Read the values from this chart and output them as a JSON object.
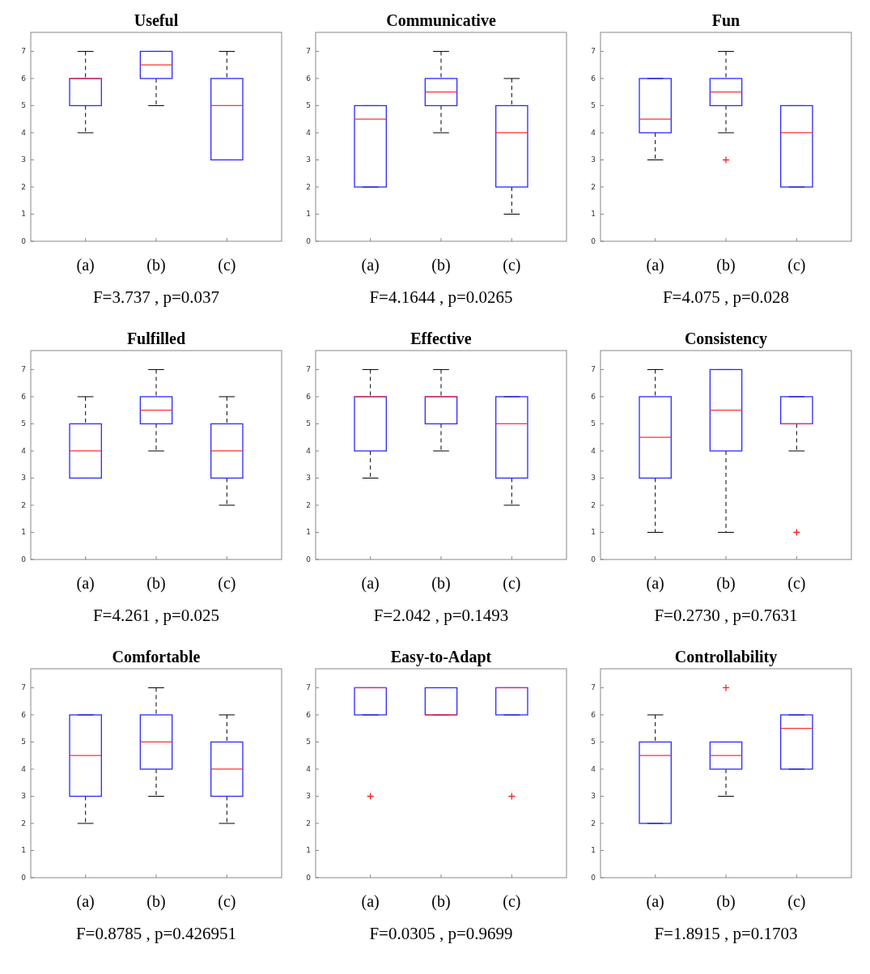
{
  "chart_data": [
    {
      "type": "box",
      "title": "Useful",
      "categories": [
        "(a)",
        "(b)",
        "(c)"
      ],
      "ylim": [
        0,
        7.7
      ],
      "yticks": [
        0,
        1,
        2,
        3,
        4,
        5,
        6,
        7
      ],
      "grid": false,
      "annotations": [
        "F=3.737 , p=0.037"
      ],
      "boxes": [
        {
          "low": 4,
          "q1": 5,
          "median": 6,
          "q3": 6,
          "high": 7
        },
        {
          "low": 5,
          "q1": 6,
          "median": 6.5,
          "q3": 7,
          "high": 7
        },
        {
          "low": 3,
          "q1": 3,
          "median": 5,
          "q3": 6,
          "high": 7
        }
      ]
    },
    {
      "type": "box",
      "title": "Communicative",
      "categories": [
        "(a)",
        "(b)",
        "(c)"
      ],
      "ylim": [
        0,
        7.7
      ],
      "yticks": [
        0,
        1,
        2,
        3,
        4,
        5,
        6,
        7
      ],
      "grid": false,
      "annotations": [
        "F=4.1644 , p=0.0265"
      ],
      "boxes": [
        {
          "low": 2,
          "q1": 2,
          "median": 4.5,
          "q3": 5,
          "high": 5
        },
        {
          "low": 4,
          "q1": 5,
          "median": 5.5,
          "q3": 6,
          "high": 7
        },
        {
          "low": 1,
          "q1": 2,
          "median": 4,
          "q3": 5,
          "high": 6
        }
      ]
    },
    {
      "type": "box",
      "title": "Fun",
      "categories": [
        "(a)",
        "(b)",
        "(c)"
      ],
      "ylim": [
        0,
        7.7
      ],
      "yticks": [
        0,
        1,
        2,
        3,
        4,
        5,
        6,
        7
      ],
      "grid": false,
      "annotations": [
        "F=4.075 , p=0.028"
      ],
      "boxes": [
        {
          "low": 3,
          "q1": 4,
          "median": 4.5,
          "q3": 6,
          "high": 6
        },
        {
          "low": 4,
          "q1": 5,
          "median": 5.5,
          "q3": 6,
          "high": 7,
          "outliers": [
            3
          ]
        },
        {
          "low": 2,
          "q1": 2,
          "median": 4,
          "q3": 5,
          "high": 5
        }
      ]
    },
    {
      "type": "box",
      "title": "Fulfilled",
      "categories": [
        "(a)",
        "(b)",
        "(c)"
      ],
      "ylim": [
        0,
        7.7
      ],
      "yticks": [
        0,
        1,
        2,
        3,
        4,
        5,
        6,
        7
      ],
      "grid": false,
      "annotations": [
        "F=4.261 , p=0.025"
      ],
      "boxes": [
        {
          "low": 3,
          "q1": 3,
          "median": 4,
          "q3": 5,
          "high": 6
        },
        {
          "low": 4,
          "q1": 5,
          "median": 5.5,
          "q3": 6,
          "high": 7
        },
        {
          "low": 2,
          "q1": 3,
          "median": 4,
          "q3": 5,
          "high": 6
        }
      ]
    },
    {
      "type": "box",
      "title": "Effective",
      "categories": [
        "(a)",
        "(b)",
        "(c)"
      ],
      "ylim": [
        0,
        7.7
      ],
      "yticks": [
        0,
        1,
        2,
        3,
        4,
        5,
        6,
        7
      ],
      "grid": false,
      "annotations": [
        "F=2.042 , p=0.1493"
      ],
      "boxes": [
        {
          "low": 3,
          "q1": 4,
          "median": 6,
          "q3": 6,
          "high": 7
        },
        {
          "low": 4,
          "q1": 5,
          "median": 6,
          "q3": 6,
          "high": 7
        },
        {
          "low": 2,
          "q1": 3,
          "median": 5,
          "q3": 6,
          "high": 6
        }
      ]
    },
    {
      "type": "box",
      "title": "Consistency",
      "categories": [
        "(a)",
        "(b)",
        "(c)"
      ],
      "ylim": [
        0,
        7.7
      ],
      "yticks": [
        0,
        1,
        2,
        3,
        4,
        5,
        6,
        7
      ],
      "grid": false,
      "annotations": [
        "F=0.2730 , p=0.7631"
      ],
      "boxes": [
        {
          "low": 1,
          "q1": 3,
          "median": 4.5,
          "q3": 6,
          "high": 7
        },
        {
          "low": 1,
          "q1": 4,
          "median": 5.5,
          "q3": 7,
          "high": 7
        },
        {
          "low": 4,
          "q1": 5,
          "median": 5,
          "q3": 6,
          "high": 6,
          "outliers": [
            1
          ]
        }
      ]
    },
    {
      "type": "box",
      "title": "Comfortable",
      "categories": [
        "(a)",
        "(b)",
        "(c)"
      ],
      "ylim": [
        0,
        7.7
      ],
      "yticks": [
        0,
        1,
        2,
        3,
        4,
        5,
        6,
        7
      ],
      "grid": false,
      "annotations": [
        "F=0.8785 , p=0.426951"
      ],
      "boxes": [
        {
          "low": 2,
          "q1": 3,
          "median": 4.5,
          "q3": 6,
          "high": 6
        },
        {
          "low": 3,
          "q1": 4,
          "median": 5,
          "q3": 6,
          "high": 7
        },
        {
          "low": 2,
          "q1": 3,
          "median": 4,
          "q3": 5,
          "high": 6
        }
      ]
    },
    {
      "type": "box",
      "title": "Easy-to-Adapt",
      "categories": [
        "(a)",
        "(b)",
        "(c)"
      ],
      "ylim": [
        0,
        7.7
      ],
      "yticks": [
        0,
        1,
        2,
        3,
        4,
        5,
        6,
        7
      ],
      "grid": false,
      "annotations": [
        "F=0.0305 , p=0.9699"
      ],
      "boxes": [
        {
          "low": 6,
          "q1": 6,
          "median": 7,
          "q3": 7,
          "high": 7,
          "outliers": [
            3
          ]
        },
        {
          "low": 6,
          "q1": 6,
          "median": 6,
          "q3": 7,
          "high": 7
        },
        {
          "low": 6,
          "q1": 6,
          "median": 7,
          "q3": 7,
          "high": 7,
          "outliers": [
            3
          ]
        }
      ]
    },
    {
      "type": "box",
      "title": "Controllability",
      "categories": [
        "(a)",
        "(b)",
        "(c)"
      ],
      "ylim": [
        0,
        7.7
      ],
      "yticks": [
        0,
        1,
        2,
        3,
        4,
        5,
        6,
        7
      ],
      "grid": false,
      "annotations": [
        "F=1.8915 , p=0.1703"
      ],
      "boxes": [
        {
          "low": 2,
          "q1": 2,
          "median": 4.5,
          "q3": 5,
          "high": 6
        },
        {
          "low": 3,
          "q1": 4,
          "median": 4.5,
          "q3": 5,
          "high": 5,
          "outliers": [
            7
          ]
        },
        {
          "low": 4,
          "q1": 4,
          "median": 5.5,
          "q3": 6,
          "high": 6
        }
      ]
    }
  ]
}
